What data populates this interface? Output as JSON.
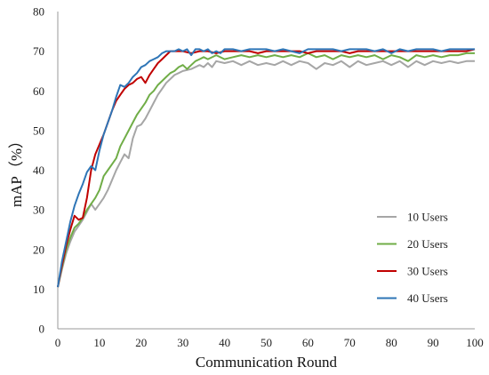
{
  "chart_data": {
    "type": "line",
    "xlabel": "Communication Round",
    "ylabel": "mAP（%）",
    "xlim": [
      0,
      100
    ],
    "ylim": [
      0,
      80
    ],
    "xticks": [
      "0",
      "10",
      "20",
      "30",
      "40",
      "50",
      "60",
      "70",
      "80",
      "90",
      "100"
    ],
    "yticks": [
      "0",
      "10",
      "20",
      "30",
      "40",
      "50",
      "60",
      "70",
      "80"
    ],
    "grid": false,
    "legend_position": "bottom-right",
    "series": [
      {
        "name": "10 Users",
        "color": "#a6a6a6",
        "points": [
          [
            0,
            10.5
          ],
          [
            1,
            15
          ],
          [
            2,
            19
          ],
          [
            3,
            22
          ],
          [
            4,
            24.5
          ],
          [
            5,
            26
          ],
          [
            6,
            27.5
          ],
          [
            7,
            29.5
          ],
          [
            8,
            31.5
          ],
          [
            9,
            30
          ],
          [
            10,
            31.5
          ],
          [
            11,
            33
          ],
          [
            12,
            35
          ],
          [
            13,
            37.5
          ],
          [
            14,
            40
          ],
          [
            15,
            42
          ],
          [
            16,
            44
          ],
          [
            17,
            43
          ],
          [
            18,
            48
          ],
          [
            19,
            51
          ],
          [
            20,
            51.5
          ],
          [
            21,
            53
          ],
          [
            22,
            55
          ],
          [
            23,
            57
          ],
          [
            24,
            59
          ],
          [
            25,
            60.5
          ],
          [
            26,
            62
          ],
          [
            27,
            63
          ],
          [
            28,
            64
          ],
          [
            29,
            64.5
          ],
          [
            30,
            65
          ],
          [
            32,
            65.5
          ],
          [
            34,
            66.5
          ],
          [
            35,
            66
          ],
          [
            36,
            67
          ],
          [
            37,
            66
          ],
          [
            38,
            67.5
          ],
          [
            40,
            67
          ],
          [
            42,
            67.5
          ],
          [
            44,
            66.5
          ],
          [
            46,
            67.5
          ],
          [
            48,
            66.5
          ],
          [
            50,
            67
          ],
          [
            52,
            66.5
          ],
          [
            54,
            67.5
          ],
          [
            56,
            66.5
          ],
          [
            58,
            67.5
          ],
          [
            60,
            67
          ],
          [
            62,
            65.5
          ],
          [
            64,
            67
          ],
          [
            66,
            66.5
          ],
          [
            68,
            67.5
          ],
          [
            70,
            66
          ],
          [
            72,
            67.5
          ],
          [
            74,
            66.5
          ],
          [
            76,
            67
          ],
          [
            78,
            67.5
          ],
          [
            80,
            66.5
          ],
          [
            82,
            67.5
          ],
          [
            84,
            66
          ],
          [
            86,
            67.5
          ],
          [
            88,
            66.5
          ],
          [
            90,
            67.5
          ],
          [
            92,
            67
          ],
          [
            94,
            67.5
          ],
          [
            96,
            67
          ],
          [
            98,
            67.5
          ],
          [
            100,
            67.5
          ]
        ]
      },
      {
        "name": "20 Users",
        "color": "#70ad47",
        "points": [
          [
            0,
            10.5
          ],
          [
            1,
            15.5
          ],
          [
            2,
            20
          ],
          [
            3,
            23
          ],
          [
            4,
            25.5
          ],
          [
            5,
            26.5
          ],
          [
            6,
            28
          ],
          [
            7,
            30
          ],
          [
            8,
            31.5
          ],
          [
            9,
            33
          ],
          [
            10,
            35
          ],
          [
            11,
            38.5
          ],
          [
            12,
            40
          ],
          [
            13,
            41.5
          ],
          [
            14,
            43
          ],
          [
            15,
            46
          ],
          [
            16,
            48
          ],
          [
            17,
            50
          ],
          [
            18,
            52
          ],
          [
            19,
            54
          ],
          [
            20,
            55.5
          ],
          [
            21,
            57
          ],
          [
            22,
            59
          ],
          [
            23,
            60
          ],
          [
            24,
            61.5
          ],
          [
            25,
            62.5
          ],
          [
            26,
            63.5
          ],
          [
            27,
            64.5
          ],
          [
            28,
            65
          ],
          [
            29,
            66
          ],
          [
            30,
            66.5
          ],
          [
            31,
            65.5
          ],
          [
            32,
            66.5
          ],
          [
            33,
            67.5
          ],
          [
            34,
            68
          ],
          [
            35,
            68.5
          ],
          [
            36,
            68
          ],
          [
            38,
            69
          ],
          [
            40,
            68
          ],
          [
            42,
            68.5
          ],
          [
            44,
            69
          ],
          [
            46,
            68.5
          ],
          [
            48,
            69
          ],
          [
            50,
            68.5
          ],
          [
            52,
            69
          ],
          [
            54,
            68.5
          ],
          [
            56,
            69
          ],
          [
            58,
            68.5
          ],
          [
            60,
            69.5
          ],
          [
            62,
            68.5
          ],
          [
            64,
            69
          ],
          [
            66,
            68
          ],
          [
            68,
            69
          ],
          [
            70,
            68.5
          ],
          [
            72,
            69
          ],
          [
            74,
            68.5
          ],
          [
            76,
            69
          ],
          [
            78,
            68
          ],
          [
            80,
            69
          ],
          [
            82,
            68.5
          ],
          [
            84,
            67.5
          ],
          [
            86,
            69
          ],
          [
            88,
            68.5
          ],
          [
            90,
            69
          ],
          [
            92,
            68.5
          ],
          [
            94,
            69
          ],
          [
            96,
            69
          ],
          [
            98,
            69.5
          ],
          [
            100,
            69.5
          ]
        ]
      },
      {
        "name": "30 Users",
        "color": "#c00000",
        "points": [
          [
            0,
            10.5
          ],
          [
            1,
            16
          ],
          [
            2,
            21
          ],
          [
            3,
            25
          ],
          [
            4,
            28.5
          ],
          [
            5,
            27.5
          ],
          [
            6,
            28
          ],
          [
            7,
            33
          ],
          [
            8,
            40
          ],
          [
            9,
            44
          ],
          [
            10,
            46.5
          ],
          [
            11,
            49
          ],
          [
            12,
            52
          ],
          [
            13,
            55
          ],
          [
            14,
            57.5
          ],
          [
            15,
            59
          ],
          [
            16,
            60.5
          ],
          [
            17,
            61.5
          ],
          [
            18,
            62
          ],
          [
            19,
            63
          ],
          [
            20,
            63.5
          ],
          [
            21,
            62
          ],
          [
            22,
            64
          ],
          [
            23,
            65.5
          ],
          [
            24,
            67
          ],
          [
            25,
            68
          ],
          [
            26,
            69
          ],
          [
            27,
            70
          ],
          [
            28,
            70
          ],
          [
            29,
            70
          ],
          [
            30,
            70
          ],
          [
            32,
            69.5
          ],
          [
            34,
            70
          ],
          [
            36,
            70
          ],
          [
            38,
            69.5
          ],
          [
            40,
            70
          ],
          [
            42,
            70
          ],
          [
            44,
            70
          ],
          [
            46,
            70
          ],
          [
            48,
            69.5
          ],
          [
            50,
            70
          ],
          [
            52,
            70
          ],
          [
            54,
            70
          ],
          [
            56,
            70
          ],
          [
            58,
            70
          ],
          [
            60,
            69.5
          ],
          [
            62,
            70
          ],
          [
            64,
            70
          ],
          [
            66,
            70
          ],
          [
            68,
            70
          ],
          [
            70,
            69.5
          ],
          [
            72,
            70
          ],
          [
            74,
            70
          ],
          [
            76,
            70
          ],
          [
            78,
            70
          ],
          [
            80,
            70
          ],
          [
            82,
            70
          ],
          [
            84,
            70
          ],
          [
            86,
            70
          ],
          [
            88,
            70
          ],
          [
            90,
            70
          ],
          [
            92,
            70
          ],
          [
            94,
            70
          ],
          [
            96,
            70
          ],
          [
            98,
            70
          ],
          [
            100,
            70.5
          ]
        ]
      },
      {
        "name": "40 Users",
        "color": "#2e75b6",
        "points": [
          [
            0,
            10.5
          ],
          [
            1,
            17
          ],
          [
            2,
            22
          ],
          [
            3,
            27
          ],
          [
            4,
            31
          ],
          [
            5,
            34
          ],
          [
            6,
            36.5
          ],
          [
            7,
            39.5
          ],
          [
            8,
            41
          ],
          [
            9,
            40
          ],
          [
            10,
            45
          ],
          [
            11,
            49
          ],
          [
            12,
            52
          ],
          [
            13,
            55
          ],
          [
            14,
            58.5
          ],
          [
            15,
            61.5
          ],
          [
            16,
            61
          ],
          [
            17,
            62
          ],
          [
            18,
            63.5
          ],
          [
            19,
            64.5
          ],
          [
            20,
            66
          ],
          [
            21,
            66.5
          ],
          [
            22,
            67.5
          ],
          [
            23,
            68
          ],
          [
            24,
            68.5
          ],
          [
            25,
            69.5
          ],
          [
            26,
            70
          ],
          [
            27,
            70
          ],
          [
            28,
            70
          ],
          [
            29,
            70.5
          ],
          [
            30,
            70
          ],
          [
            31,
            70.5
          ],
          [
            32,
            69
          ],
          [
            33,
            70.5
          ],
          [
            34,
            70.5
          ],
          [
            35,
            70
          ],
          [
            36,
            70.5
          ],
          [
            37,
            69.5
          ],
          [
            38,
            70
          ],
          [
            39,
            69.5
          ],
          [
            40,
            70.5
          ],
          [
            42,
            70.5
          ],
          [
            44,
            70
          ],
          [
            46,
            70.5
          ],
          [
            48,
            70.5
          ],
          [
            50,
            70.5
          ],
          [
            52,
            70
          ],
          [
            54,
            70.5
          ],
          [
            56,
            70
          ],
          [
            58,
            69.5
          ],
          [
            60,
            70.5
          ],
          [
            62,
            70.5
          ],
          [
            64,
            70.5
          ],
          [
            66,
            70.5
          ],
          [
            68,
            70
          ],
          [
            70,
            70.5
          ],
          [
            72,
            70.5
          ],
          [
            74,
            70.5
          ],
          [
            76,
            70
          ],
          [
            78,
            70.5
          ],
          [
            80,
            69.5
          ],
          [
            82,
            70.5
          ],
          [
            84,
            70
          ],
          [
            86,
            70.5
          ],
          [
            88,
            70.5
          ],
          [
            90,
            70.5
          ],
          [
            92,
            70
          ],
          [
            94,
            70.5
          ],
          [
            96,
            70.5
          ],
          [
            98,
            70.5
          ],
          [
            100,
            70.5
          ]
        ]
      }
    ]
  }
}
